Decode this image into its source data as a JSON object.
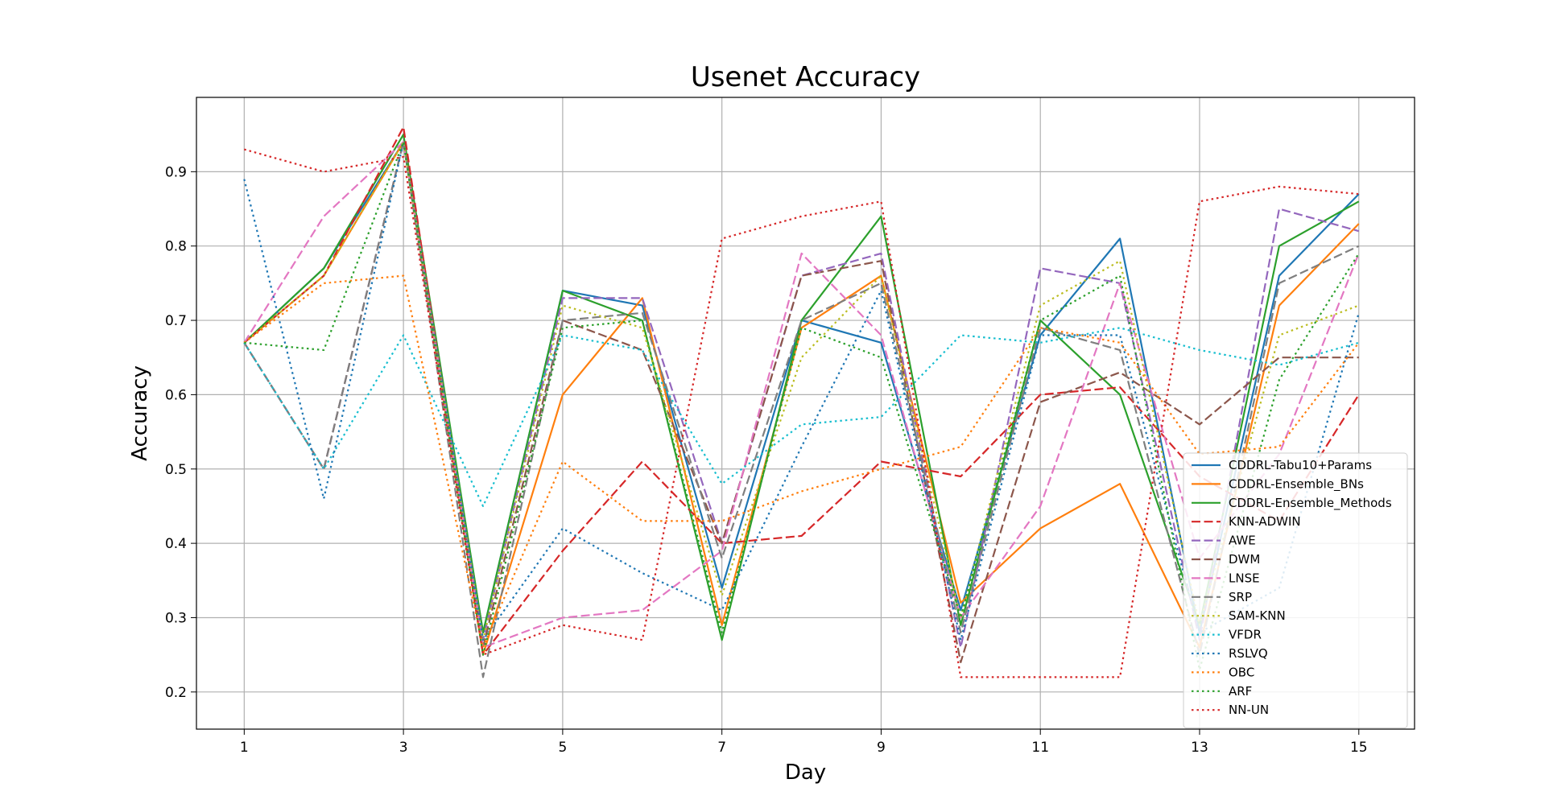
{
  "chart_data": {
    "type": "line",
    "title": "Usenet Accuracy",
    "xlabel": "Day",
    "ylabel": "Accuracy",
    "x": [
      1,
      2,
      3,
      4,
      5,
      6,
      7,
      8,
      9,
      10,
      11,
      12,
      13,
      14,
      15
    ],
    "xticks": [
      "1",
      "3",
      "5",
      "7",
      "9",
      "11",
      "13",
      "15"
    ],
    "yticks": [
      "0.2",
      "0.3",
      "0.4",
      "0.5",
      "0.6",
      "0.7",
      "0.8",
      "0.9"
    ],
    "xlim": [
      0.4,
      15.7
    ],
    "ylim": [
      0.15,
      1.0
    ],
    "grid": true,
    "legend_position": "lower-right",
    "series": [
      {
        "name": "CDDRL-Tabu10+Params",
        "color": "#1f77b4",
        "style": "solid",
        "values": [
          0.67,
          0.77,
          0.94,
          0.28,
          0.74,
          0.72,
          0.34,
          0.7,
          0.67,
          0.31,
          0.68,
          0.81,
          0.28,
          0.76,
          0.87
        ]
      },
      {
        "name": "CDDRL-Ensemble_BNs",
        "color": "#ff7f0e",
        "style": "solid",
        "values": [
          0.67,
          0.76,
          0.94,
          0.25,
          0.6,
          0.73,
          0.29,
          0.69,
          0.76,
          0.32,
          0.42,
          0.48,
          0.26,
          0.72,
          0.83
        ]
      },
      {
        "name": "CDDRL-Ensemble_Methods",
        "color": "#2ca02c",
        "style": "solid",
        "values": [
          0.67,
          0.77,
          0.95,
          0.28,
          0.74,
          0.7,
          0.27,
          0.7,
          0.84,
          0.29,
          0.7,
          0.6,
          0.29,
          0.8,
          0.86
        ]
      },
      {
        "name": "KNN-ADWIN",
        "color": "#d62728",
        "style": "dashed",
        "values": [
          0.67,
          0.76,
          0.96,
          0.25,
          0.39,
          0.51,
          0.4,
          0.41,
          0.51,
          0.49,
          0.6,
          0.61,
          0.49,
          0.43,
          0.6
        ]
      },
      {
        "name": "AWE",
        "color": "#9467bd",
        "style": "dashed",
        "values": [
          0.67,
          0.5,
          0.94,
          0.27,
          0.73,
          0.73,
          0.4,
          0.76,
          0.79,
          0.26,
          0.77,
          0.75,
          0.27,
          0.85,
          0.82
        ]
      },
      {
        "name": "DWM",
        "color": "#8c564b",
        "style": "dashed",
        "values": [
          0.67,
          0.5,
          0.94,
          0.26,
          0.7,
          0.66,
          0.4,
          0.76,
          0.78,
          0.24,
          0.59,
          0.63,
          0.56,
          0.65,
          0.65
        ]
      },
      {
        "name": "LNSE",
        "color": "#e377c2",
        "style": "dashed",
        "values": [
          0.67,
          0.84,
          0.94,
          0.26,
          0.3,
          0.31,
          0.39,
          0.79,
          0.68,
          0.3,
          0.45,
          0.75,
          0.38,
          0.52,
          0.79
        ]
      },
      {
        "name": "SRP",
        "color": "#7f7f7f",
        "style": "dashed",
        "values": [
          0.67,
          0.5,
          0.94,
          0.22,
          0.7,
          0.71,
          0.38,
          0.7,
          0.75,
          0.28,
          0.69,
          0.66,
          0.25,
          0.75,
          0.8
        ]
      },
      {
        "name": "SAM-KNN",
        "color": "#bcbd22",
        "style": "dotted",
        "values": [
          0.67,
          0.76,
          0.94,
          0.27,
          0.72,
          0.69,
          0.33,
          0.65,
          0.76,
          0.3,
          0.72,
          0.78,
          0.29,
          0.68,
          0.72
        ]
      },
      {
        "name": "VFDR",
        "color": "#17becf",
        "style": "dotted",
        "values": [
          0.67,
          0.5,
          0.68,
          0.45,
          0.68,
          0.66,
          0.48,
          0.56,
          0.57,
          0.68,
          0.67,
          0.69,
          0.66,
          0.64,
          0.67
        ]
      },
      {
        "name": "RSLVQ",
        "color": "#1f77b4",
        "style": "dotted",
        "values": [
          0.89,
          0.46,
          0.94,
          0.27,
          0.42,
          0.36,
          0.31,
          0.53,
          0.74,
          0.27,
          0.68,
          0.68,
          0.28,
          0.34,
          0.71
        ]
      },
      {
        "name": "OBC",
        "color": "#ff7f0e",
        "style": "dotted",
        "values": [
          0.67,
          0.75,
          0.76,
          0.26,
          0.51,
          0.43,
          0.43,
          0.47,
          0.5,
          0.53,
          0.69,
          0.67,
          0.52,
          0.53,
          0.67
        ]
      },
      {
        "name": "ARF",
        "color": "#2ca02c",
        "style": "dotted",
        "values": [
          0.67,
          0.66,
          0.94,
          0.25,
          0.69,
          0.7,
          0.28,
          0.69,
          0.65,
          0.3,
          0.7,
          0.76,
          0.23,
          0.62,
          0.79
        ]
      },
      {
        "name": "NN-UN",
        "color": "#d62728",
        "style": "dotted",
        "values": [
          0.93,
          0.9,
          0.92,
          0.25,
          0.29,
          0.27,
          0.81,
          0.84,
          0.86,
          0.22,
          0.22,
          0.22,
          0.86,
          0.88,
          0.87
        ]
      }
    ]
  }
}
